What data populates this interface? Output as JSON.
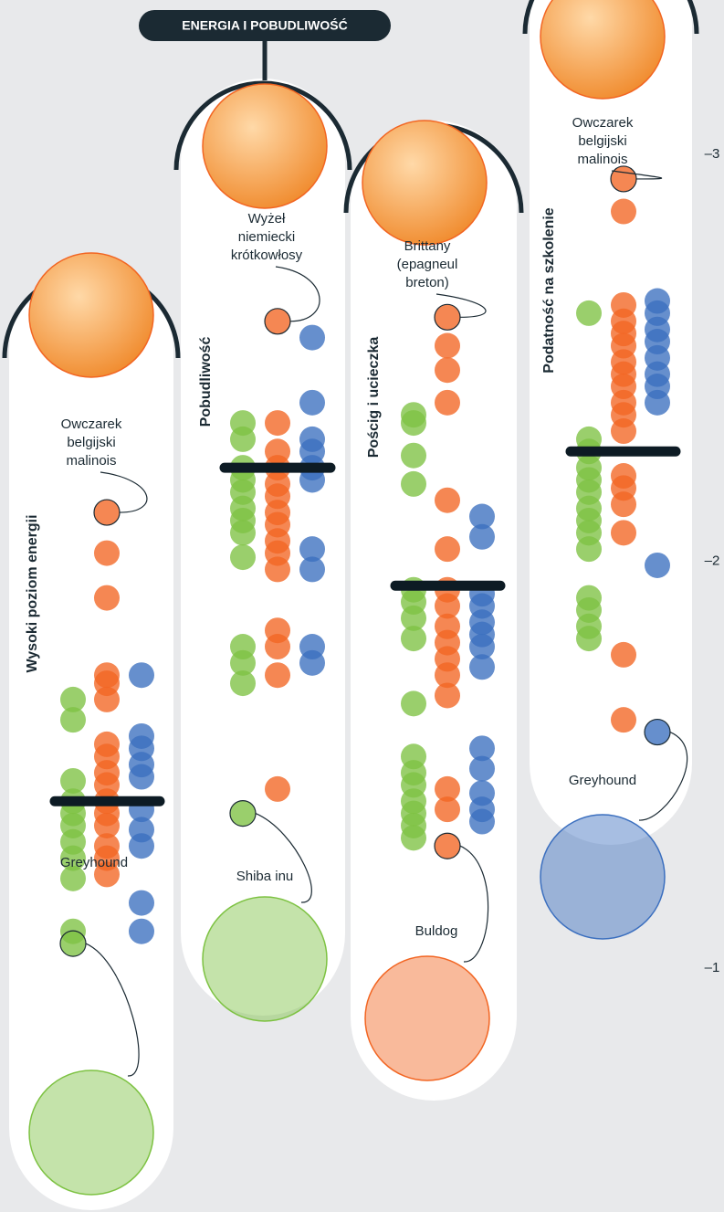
{
  "chart_data": {
    "type": "strip",
    "title": "ENERGIA I POBUDLIWOŚĆ",
    "ylim": [
      -0.4,
      -3.38
    ],
    "yticks": [
      {
        "value": -3,
        "label": "–3"
      },
      {
        "value": -2,
        "label": "–2"
      },
      {
        "value": -1,
        "label": "–1"
      }
    ],
    "panels": [
      {
        "label": "Wysoki poziom energii",
        "mean": -1.41,
        "top_breed": "Owczarek belgijski malinois",
        "bottom_breed": "Greyhound",
        "series": [
          {
            "color": "#7dc242",
            "values": [
              -1.66,
              -1.61,
              -1.46,
              -1.41,
              -1.38,
              -1.35,
              -1.31,
              -1.27,
              -1.22,
              -1.09,
              -1.06
            ]
          },
          {
            "color": "#f26522",
            "values": [
              -2.12,
              -2.02,
              -1.91,
              -1.72,
              -1.7,
              -1.66,
              -1.55,
              -1.52,
              -1.48,
              -1.45,
              -1.41,
              -1.38,
              -1.35,
              -1.3,
              -1.27,
              -1.23
            ]
          },
          {
            "color": "#3b6fbf",
            "values": [
              -1.72,
              -1.57,
              -1.54,
              -1.5,
              -1.47,
              -1.39,
              -1.34,
              -1.3,
              -1.16,
              -1.09
            ]
          }
        ]
      },
      {
        "label": "Pobudliwość",
        "mean": -2.23,
        "top_breed": "Wyżeł niemiecki krótkowłosy",
        "bottom_breed": "Shiba inu",
        "series": [
          {
            "color": "#7dc242",
            "values": [
              -2.34,
              -2.3,
              -2.23,
              -2.2,
              -2.17,
              -2.13,
              -2.1,
              -2.07,
              -2.01,
              -1.79,
              -1.75,
              -1.7,
              -1.38
            ]
          },
          {
            "color": "#f26522",
            "values": [
              -2.59,
              -2.34,
              -2.27,
              -2.23,
              -2.19,
              -2.16,
              -2.12,
              -2.09,
              -2.05,
              -2.02,
              -1.98,
              -1.83,
              -1.79,
              -1.72,
              -1.44
            ]
          },
          {
            "color": "#3b6fbf",
            "values": [
              -2.55,
              -2.39,
              -2.3,
              -2.27,
              -2.23,
              -2.2,
              -2.03,
              -1.98,
              -1.79,
              -1.75
            ]
          }
        ]
      },
      {
        "label": "Pościg i ucieczka",
        "mean": -1.94,
        "top_breed": "Brittany (epagneul breton)",
        "bottom_breed": "Buldog",
        "series": [
          {
            "color": "#7dc242",
            "values": [
              -2.36,
              -2.34,
              -2.26,
              -2.19,
              -1.93,
              -1.9,
              -1.86,
              -1.81,
              -1.65,
              -1.52,
              -1.48,
              -1.45,
              -1.41,
              -1.38,
              -1.35,
              -1.32
            ]
          },
          {
            "color": "#f26522",
            "values": [
              -2.6,
              -2.53,
              -2.47,
              -2.39,
              -2.15,
              -2.03,
              -1.93,
              -1.89,
              -1.84,
              -1.8,
              -1.76,
              -1.72,
              -1.67,
              -1.44,
              -1.39,
              -1.3
            ]
          },
          {
            "color": "#3b6fbf",
            "values": [
              -2.11,
              -2.06,
              -1.92,
              -1.89,
              -1.85,
              -1.82,
              -1.79,
              -1.74,
              -1.54,
              -1.49,
              -1.43,
              -1.39,
              -1.36
            ]
          }
        ]
      },
      {
        "label": "Podatność na szkolenie",
        "mean": -2.27,
        "top_breed": "Owczarek belgijski malinois",
        "bottom_breed": "Greyhound",
        "series": [
          {
            "color": "#7dc242",
            "values": [
              -2.61,
              -2.3,
              -2.27,
              -2.23,
              -2.2,
              -2.17,
              -2.13,
              -2.1,
              -2.07,
              -2.03,
              -1.91,
              -1.88,
              -1.84,
              -1.81
            ]
          },
          {
            "color": "#f26522",
            "values": [
              -2.94,
              -2.86,
              -2.63,
              -2.59,
              -2.56,
              -2.53,
              -2.49,
              -2.46,
              -2.43,
              -2.39,
              -2.36,
              -2.32,
              -2.21,
              -2.18,
              -2.14,
              -2.07,
              -1.77,
              -1.61
            ]
          },
          {
            "color": "#3b6fbf",
            "values": [
              -2.64,
              -2.61,
              -2.57,
              -2.54,
              -2.5,
              -2.46,
              -2.43,
              -2.39,
              -1.99,
              -1.58
            ]
          }
        ]
      }
    ]
  }
}
